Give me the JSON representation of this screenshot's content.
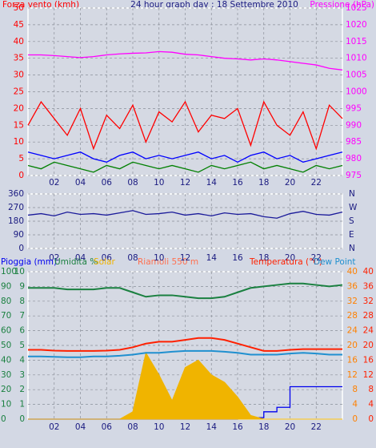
{
  "chart_data": [
    {
      "type": "line",
      "title": "24 hour graph day : 18 Settembre 2010",
      "ylabel": "Forza vento (kmh)",
      "y2label": "Pressione (hPa)",
      "x": [
        0,
        1,
        2,
        3,
        4,
        5,
        6,
        7,
        8,
        9,
        10,
        11,
        12,
        13,
        14,
        15,
        16,
        17,
        18,
        19,
        20,
        21,
        22,
        23,
        24
      ],
      "xlim": [
        0,
        24
      ],
      "xticks": [
        {
          "value": 2,
          "label": "02"
        },
        {
          "value": 4,
          "label": "04"
        },
        {
          "value": 6,
          "label": "06"
        },
        {
          "value": 8,
          "label": "08"
        },
        {
          "value": 10,
          "label": "10"
        },
        {
          "value": 12,
          "label": "12"
        },
        {
          "value": 14,
          "label": "14"
        },
        {
          "value": 16,
          "label": "16"
        },
        {
          "value": 18,
          "label": "18"
        },
        {
          "value": 20,
          "label": "20"
        },
        {
          "value": 22,
          "label": "22"
        }
      ],
      "ylim": [
        0,
        50
      ],
      "yticks": [
        0,
        5,
        10,
        15,
        20,
        25,
        30,
        35,
        40,
        45,
        50
      ],
      "y2lim": [
        975,
        1025
      ],
      "y2ticks": [
        975,
        980,
        985,
        990,
        995,
        1000,
        1005,
        1010,
        1015,
        1020,
        1025
      ],
      "grid": true,
      "series": [
        {
          "color": "#ff0000",
          "values": [
            15,
            22,
            17,
            12,
            20,
            8,
            18,
            14,
            21,
            10,
            19,
            16,
            22,
            13,
            18,
            17,
            20,
            9,
            22,
            15,
            12,
            19,
            8,
            21,
            17
          ]
        },
        {
          "color": "#0000ff",
          "values": [
            7,
            6,
            5,
            6,
            7,
            5,
            4,
            6,
            7,
            5,
            6,
            5,
            6,
            7,
            5,
            6,
            4,
            6,
            7,
            5,
            6,
            4,
            5,
            6,
            7
          ]
        },
        {
          "color": "#008000",
          "values": [
            3,
            2,
            4,
            3,
            2,
            1,
            3,
            2,
            4,
            3,
            2,
            3,
            2,
            1,
            3,
            2,
            3,
            4,
            2,
            3,
            2,
            1,
            3,
            2,
            3
          ]
        },
        {
          "color": "#ff00ff",
          "axis": "y2",
          "values": [
            1011,
            1011,
            1010.8,
            1010.5,
            1010.2,
            1010.5,
            1011,
            1011.3,
            1011.5,
            1011.6,
            1012,
            1011.8,
            1011.2,
            1011,
            1010.5,
            1010,
            1009.8,
            1009.5,
            1009.8,
            1009.5,
            1009,
            1008.5,
            1008,
            1007,
            1006.5
          ]
        }
      ]
    },
    {
      "type": "line",
      "x": [
        0,
        1,
        2,
        3,
        4,
        5,
        6,
        7,
        8,
        9,
        10,
        11,
        12,
        13,
        14,
        15,
        16,
        17,
        18,
        19,
        20,
        21,
        22,
        23,
        24
      ],
      "xlim": [
        0,
        24
      ],
      "xticks": [
        {
          "value": 2,
          "label": "02"
        },
        {
          "value": 4,
          "label": "04"
        },
        {
          "value": 6,
          "label": "06"
        },
        {
          "value": 8,
          "label": "08"
        },
        {
          "value": 10,
          "label": "10"
        },
        {
          "value": 12,
          "label": "12"
        },
        {
          "value": 14,
          "label": "14"
        },
        {
          "value": 16,
          "label": "16"
        },
        {
          "value": 18,
          "label": "18"
        },
        {
          "value": 20,
          "label": "20"
        },
        {
          "value": 22,
          "label": "22"
        }
      ],
      "ylim": [
        0,
        360
      ],
      "yticks": [
        0,
        90,
        180,
        270,
        360
      ],
      "y2lim": [
        0,
        360
      ],
      "y2ticks": [
        {
          "value": 0,
          "label": "N"
        },
        {
          "value": 90,
          "label": "E"
        },
        {
          "value": 180,
          "label": "S"
        },
        {
          "value": 270,
          "label": "W"
        },
        {
          "value": 360,
          "label": "N"
        }
      ],
      "grid": true,
      "series": [
        {
          "color": "#1a1a9a",
          "values": [
            220,
            230,
            215,
            240,
            225,
            230,
            220,
            235,
            250,
            225,
            230,
            240,
            220,
            230,
            215,
            235,
            225,
            230,
            210,
            200,
            230,
            245,
            225,
            220,
            240
          ]
        }
      ]
    },
    {
      "type": "line",
      "annotations": [
        "Riamoli 550 m"
      ],
      "x": [
        0,
        1,
        2,
        3,
        4,
        5,
        6,
        7,
        8,
        9,
        10,
        11,
        12,
        13,
        14,
        15,
        16,
        17,
        18,
        19,
        20,
        21,
        22,
        23,
        24
      ],
      "xlim": [
        0,
        24
      ],
      "xticks": [
        {
          "value": 2,
          "label": "02"
        },
        {
          "value": 4,
          "label": "04"
        },
        {
          "value": 6,
          "label": "06"
        },
        {
          "value": 8,
          "label": "08"
        },
        {
          "value": 10,
          "label": "10"
        },
        {
          "value": 12,
          "label": "12"
        },
        {
          "value": 14,
          "label": "14"
        },
        {
          "value": 16,
          "label": "16"
        },
        {
          "value": 18,
          "label": "18"
        },
        {
          "value": 20,
          "label": "20"
        },
        {
          "value": 22,
          "label": "22"
        }
      ],
      "ylim": [
        0,
        100
      ],
      "yticks": [
        0,
        10,
        20,
        30,
        40,
        50,
        60,
        70,
        80,
        90,
        100
      ],
      "y3lim": [
        0,
        10
      ],
      "y3ticks": [
        0,
        1,
        2,
        3,
        4,
        5,
        6,
        7,
        8,
        9,
        10
      ],
      "y2lim": [
        0,
        40
      ],
      "y2ticks": [
        0,
        4,
        8,
        12,
        16,
        20,
        24,
        28,
        32,
        36,
        40
      ],
      "y4lim": [
        0,
        40
      ],
      "y4ticks": [
        0,
        4,
        8,
        12,
        16,
        20,
        24,
        28,
        32,
        36,
        40
      ],
      "grid": true,
      "series": [
        {
          "name": "Pioggia (mm)",
          "color": "#0000ee",
          "axis": "y3",
          "style": "step",
          "values": [
            0,
            0,
            0,
            0,
            0,
            0,
            0,
            0,
            0,
            0,
            0,
            0,
            0,
            0,
            0,
            0,
            0.1,
            0.1,
            0.5,
            0.8,
            2.2,
            2.2,
            2.2,
            2.2,
            2.2
          ]
        },
        {
          "name": "Umidita %",
          "color": "#1a8040",
          "values": [
            89,
            89,
            89,
            88,
            88,
            88,
            89,
            89,
            86,
            83,
            84,
            84,
            83,
            82,
            82,
            83,
            86,
            89,
            90,
            91,
            92,
            92,
            91,
            90,
            91
          ]
        },
        {
          "name": "Solar",
          "color": "#f0b400",
          "axis": "y2",
          "style": "area",
          "values": [
            0,
            0,
            0,
            0,
            0,
            0,
            0,
            0,
            2,
            18,
            12,
            5,
            14,
            16,
            12,
            10,
            6,
            1,
            0,
            0,
            0,
            0,
            0,
            0,
            0
          ]
        },
        {
          "name": "Temperatura (°C)",
          "color": "#ff2000",
          "axis": "y4",
          "values": [
            18.8,
            18.8,
            18.6,
            18.5,
            18.5,
            18.5,
            18.6,
            18.8,
            19.5,
            20.5,
            21,
            21,
            21.5,
            22,
            22,
            21.5,
            20.5,
            19.5,
            18.5,
            18.5,
            18.8,
            19,
            19,
            19,
            19
          ]
        },
        {
          "name": "Dew Point",
          "color": "#2090d0",
          "axis": "y4",
          "values": [
            17,
            17,
            16.9,
            16.8,
            16.8,
            17,
            17,
            17.2,
            17.5,
            18,
            18,
            18.3,
            18.5,
            18.5,
            18.5,
            18.3,
            18,
            17.5,
            17.5,
            17.5,
            17.8,
            18,
            17.8,
            17.5,
            17.5
          ]
        }
      ]
    }
  ]
}
